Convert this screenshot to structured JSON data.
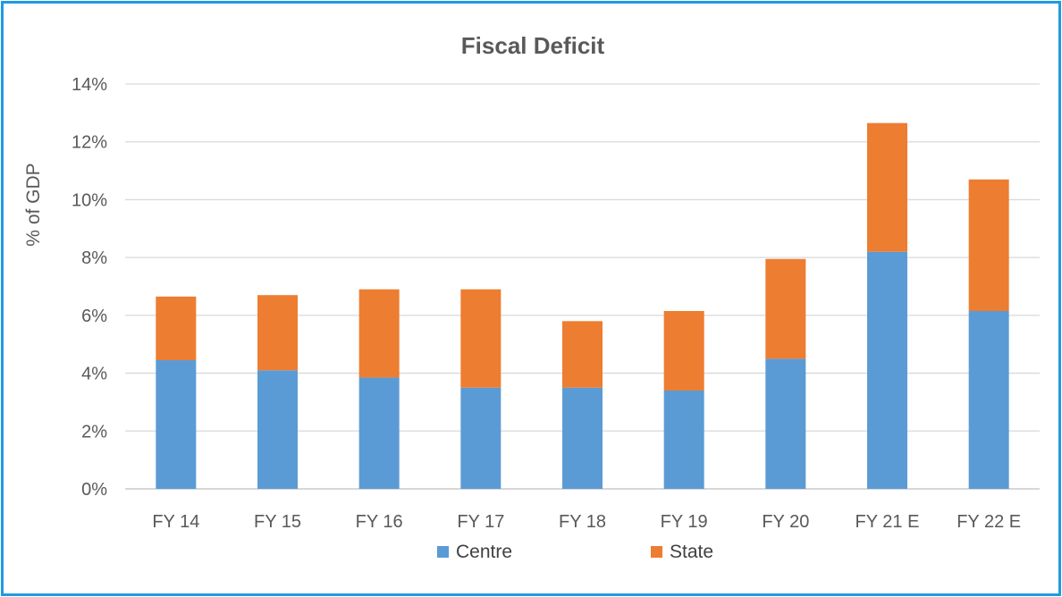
{
  "chart_data": {
    "type": "bar",
    "stacked": true,
    "title": "Fiscal Deficit",
    "xlabel": "",
    "ylabel": "% of GDP",
    "ylim": [
      0,
      14
    ],
    "y_ticks": [
      "0%",
      "2%",
      "4%",
      "6%",
      "8%",
      "10%",
      "12%",
      "14%"
    ],
    "categories": [
      "FY 14",
      "FY 15",
      "FY 16",
      "FY 17",
      "FY 18",
      "FY 19",
      "FY 20",
      "FY 21 E",
      "FY 22 E"
    ],
    "series": [
      {
        "name": "Centre",
        "color": "#5b9bd5",
        "values": [
          4.45,
          4.1,
          3.85,
          3.5,
          3.5,
          3.4,
          4.5,
          8.2,
          6.15
        ]
      },
      {
        "name": "State",
        "color": "#ed7d31",
        "values": [
          2.2,
          2.6,
          3.05,
          3.4,
          2.3,
          2.75,
          3.45,
          4.45,
          4.55
        ]
      }
    ],
    "grid": true,
    "legend_position": "bottom"
  }
}
